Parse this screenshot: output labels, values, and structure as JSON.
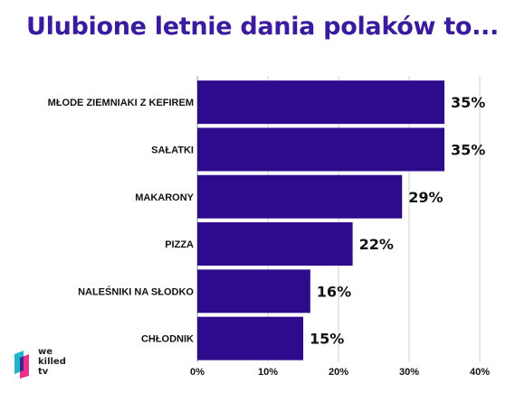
{
  "title": "Ulubione letnie dania polaków to...",
  "colors": {
    "bar": "#2e0a8c",
    "title": "#3a1a9e",
    "grid": "#cccccc"
  },
  "logo": {
    "line1": "we",
    "line2": "killed",
    "line3": "tv"
  },
  "chart_data": {
    "type": "bar",
    "orientation": "horizontal",
    "title": "Ulubione letnie dania polaków to...",
    "categories": [
      "MŁODE ZIEMNIAKI Z KEFIREM",
      "SAŁATKI",
      "MAKARONY",
      "PIZZA",
      "NALEŚNIKI NA SŁODKO",
      "CHŁODNIK"
    ],
    "values": [
      35,
      35,
      29,
      22,
      16,
      15
    ],
    "value_labels": [
      "35%",
      "35%",
      "29%",
      "22%",
      "16%",
      "15%"
    ],
    "xlim": [
      0,
      40
    ],
    "xticks": [
      0,
      10,
      20,
      30,
      40
    ],
    "xtick_labels": [
      "0%",
      "10%",
      "20%",
      "30%",
      "40%"
    ],
    "grid": true
  }
}
